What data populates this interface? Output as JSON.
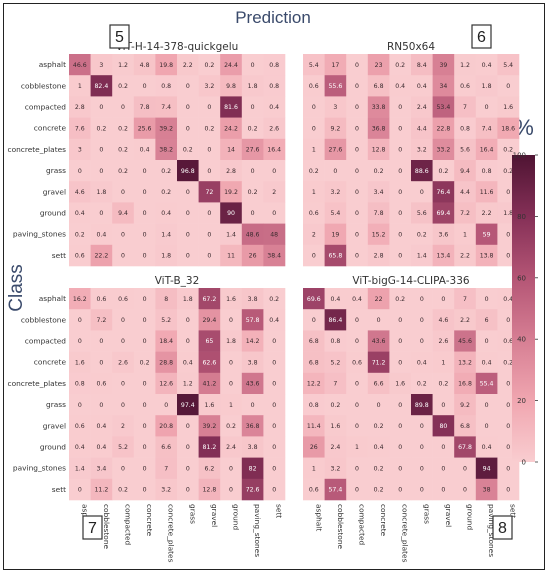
{
  "figure": {
    "title": "Prediction",
    "ylabel": "Class",
    "colorbar_label": "%"
  },
  "chart_data": {
    "type": "heatmap",
    "classes": [
      "asphalt",
      "cobblestone",
      "compacted",
      "concrete",
      "concrete_plates",
      "grass",
      "gravel",
      "ground",
      "paving_stones",
      "sett"
    ],
    "colorbar": {
      "min": 0,
      "max": 100,
      "ticks": [
        0,
        20,
        40,
        60,
        80,
        100
      ],
      "color_low": "#f9cdd0",
      "color_high": "#4f1433"
    },
    "panels": [
      {
        "badge": "5",
        "title": "ViT-H-14-378-quickgelu",
        "values": [
          [
            "46.6",
            "3",
            "1.2",
            "4.8",
            "19.8",
            "2.2",
            "0.2",
            "24.4",
            "0",
            "0.8"
          ],
          [
            "1",
            "82.4",
            "0.2",
            "0",
            "0.8",
            "0",
            "3.2",
            "9.8",
            "1.8",
            "0.8"
          ],
          [
            "2.8",
            "0",
            "0",
            "7.8",
            "7.4",
            "0",
            "0",
            "81.6",
            "0",
            "0.4"
          ],
          [
            "7.6",
            "0.2",
            "0.2",
            "25.6",
            "39.2",
            "0",
            "0.2",
            "24.2",
            "0.2",
            "2.6"
          ],
          [
            "3",
            "0",
            "0.2",
            "0.4",
            "38.2",
            "0.2",
            "0",
            "14",
            "27.6",
            "16.4"
          ],
          [
            "0",
            "0",
            "0.2",
            "0",
            "0.2",
            "96.8",
            "0",
            "2.8",
            "0",
            "0"
          ],
          [
            "4.6",
            "1.8",
            "0",
            "0",
            "0.2",
            "0",
            "72",
            "19.2",
            "0.2",
            "2"
          ],
          [
            "0.4",
            "0",
            "9.4",
            "0",
            "0.4",
            "0",
            "0",
            "90",
            "0",
            "0"
          ],
          [
            "0.2",
            "0.4",
            "0",
            "0",
            "1.4",
            "0",
            "0",
            "1.4",
            "48.6",
            "48"
          ],
          [
            "0.6",
            "22.2",
            "0",
            "0",
            "1.8",
            "0",
            "0",
            "11",
            "26",
            "38.4"
          ]
        ]
      },
      {
        "badge": "6",
        "title": "RN50x64",
        "values": [
          [
            "5.4",
            "17",
            "0",
            "23",
            "0.2",
            "8.4",
            "39",
            "1.2",
            "0.4",
            "5.4"
          ],
          [
            "0.6",
            "55.6",
            "0",
            "6.8",
            "0.4",
            "0.4",
            "34",
            "0.6",
            "1.8",
            "0"
          ],
          [
            "0",
            "3",
            "0",
            "33.8",
            "0",
            "2.4",
            "53.4",
            "7",
            "0",
            "1.6"
          ],
          [
            "0",
            "9.2",
            "0",
            "36.8",
            "0",
            "4.4",
            "22.8",
            "0.8",
            "7.4",
            "18.6"
          ],
          [
            "1",
            "27.6",
            "0",
            "12.8",
            "0",
            "3.2",
            "33.2",
            "5.6",
            "16.4",
            "0.2"
          ],
          [
            "0.2",
            "0",
            "0",
            "0.2",
            "0",
            "88.6",
            "0.2",
            "9.4",
            "0.8",
            "0.2"
          ],
          [
            "1",
            "3.2",
            "0",
            "3.4",
            "0",
            "0",
            "76.4",
            "4.4",
            "11.6",
            "0"
          ],
          [
            "0.6",
            "5.4",
            "0",
            "7.8",
            "0",
            "5.6",
            "69.4",
            "7.2",
            "2.2",
            "1.8"
          ],
          [
            "2",
            "19",
            "0",
            "15.2",
            "0",
            "0.2",
            "3.6",
            "1",
            "59",
            "0"
          ],
          [
            "0",
            "65.8",
            "0",
            "2.8",
            "0",
            "1.4",
            "13.4",
            "2.2",
            "13.8",
            "0"
          ]
        ]
      },
      {
        "badge": "7",
        "title": "ViT-B_32",
        "values": [
          [
            "16.2",
            "0.6",
            "0.6",
            "0",
            "8",
            "1.8",
            "67.2",
            "1.6",
            "3.8",
            "0.2"
          ],
          [
            "0",
            "7.2",
            "0",
            "0",
            "5.2",
            "0",
            "29.4",
            "0",
            "57.8",
            "0.4"
          ],
          [
            "0",
            "0",
            "0",
            "0",
            "18.4",
            "0",
            "65",
            "1.8",
            "14.2",
            "0"
          ],
          [
            "1.6",
            "0",
            "2.6",
            "0.2",
            "28.8",
            "0.4",
            "62.6",
            "0",
            "3.8",
            "0"
          ],
          [
            "0.8",
            "0.6",
            "0",
            "0",
            "12.6",
            "1.2",
            "41.2",
            "0",
            "43.6",
            "0"
          ],
          [
            "0",
            "0",
            "0",
            "0",
            "0",
            "97.4",
            "1.6",
            "1",
            "0",
            "0"
          ],
          [
            "0.6",
            "0.4",
            "2",
            "0",
            "20.8",
            "0",
            "39.2",
            "0.2",
            "36.8",
            "0"
          ],
          [
            "0.4",
            "0.4",
            "5.2",
            "0",
            "6.6",
            "0",
            "81.2",
            "2.4",
            "3.8",
            "0"
          ],
          [
            "1.4",
            "3.4",
            "0",
            "0",
            "7",
            "0",
            "6.2",
            "0",
            "82",
            "0"
          ],
          [
            "0",
            "11.2",
            "0.2",
            "0",
            "3.2",
            "0",
            "12.8",
            "0",
            "72.6",
            "0"
          ]
        ]
      },
      {
        "badge": "8",
        "title": "ViT-bigG-14-CLIPA-336",
        "values": [
          [
            "69.6",
            "0.4",
            "0.4",
            "22",
            "0.2",
            "0",
            "0",
            "7",
            "0",
            "0.4"
          ],
          [
            "0",
            "86.4",
            "0",
            "0",
            "0",
            "0",
            "4.6",
            "2.2",
            "6",
            "0"
          ],
          [
            "6.8",
            "0.8",
            "0",
            "43.6",
            "0",
            "0",
            "2.6",
            "45.6",
            "0",
            "0.6"
          ],
          [
            "6.8",
            "5.2",
            "0.6",
            "71.2",
            "0",
            "0.4",
            "1",
            "13.2",
            "0.4",
            "0.2"
          ],
          [
            "12.2",
            "7",
            "0",
            "6.6",
            "1.6",
            "0.2",
            "0.2",
            "16.8",
            "55.4",
            "0"
          ],
          [
            "0.8",
            "0.2",
            "0",
            "0",
            "0",
            "89.8",
            "0",
            "9.2",
            "0",
            "0"
          ],
          [
            "11.4",
            "1.6",
            "0",
            "0.2",
            "0",
            "0",
            "80",
            "6.8",
            "0",
            "0"
          ],
          [
            "26",
            "2.4",
            "1",
            "0.4",
            "0",
            "0",
            "0",
            "67.8",
            "0.4",
            "0"
          ],
          [
            "1",
            "3.2",
            "0",
            "0.2",
            "0",
            "0",
            "0",
            "0",
            "94",
            "0"
          ],
          [
            "0.6",
            "57.4",
            "0",
            "0.2",
            "0",
            "0",
            "0",
            "0",
            "38",
            "0"
          ]
        ]
      }
    ]
  }
}
